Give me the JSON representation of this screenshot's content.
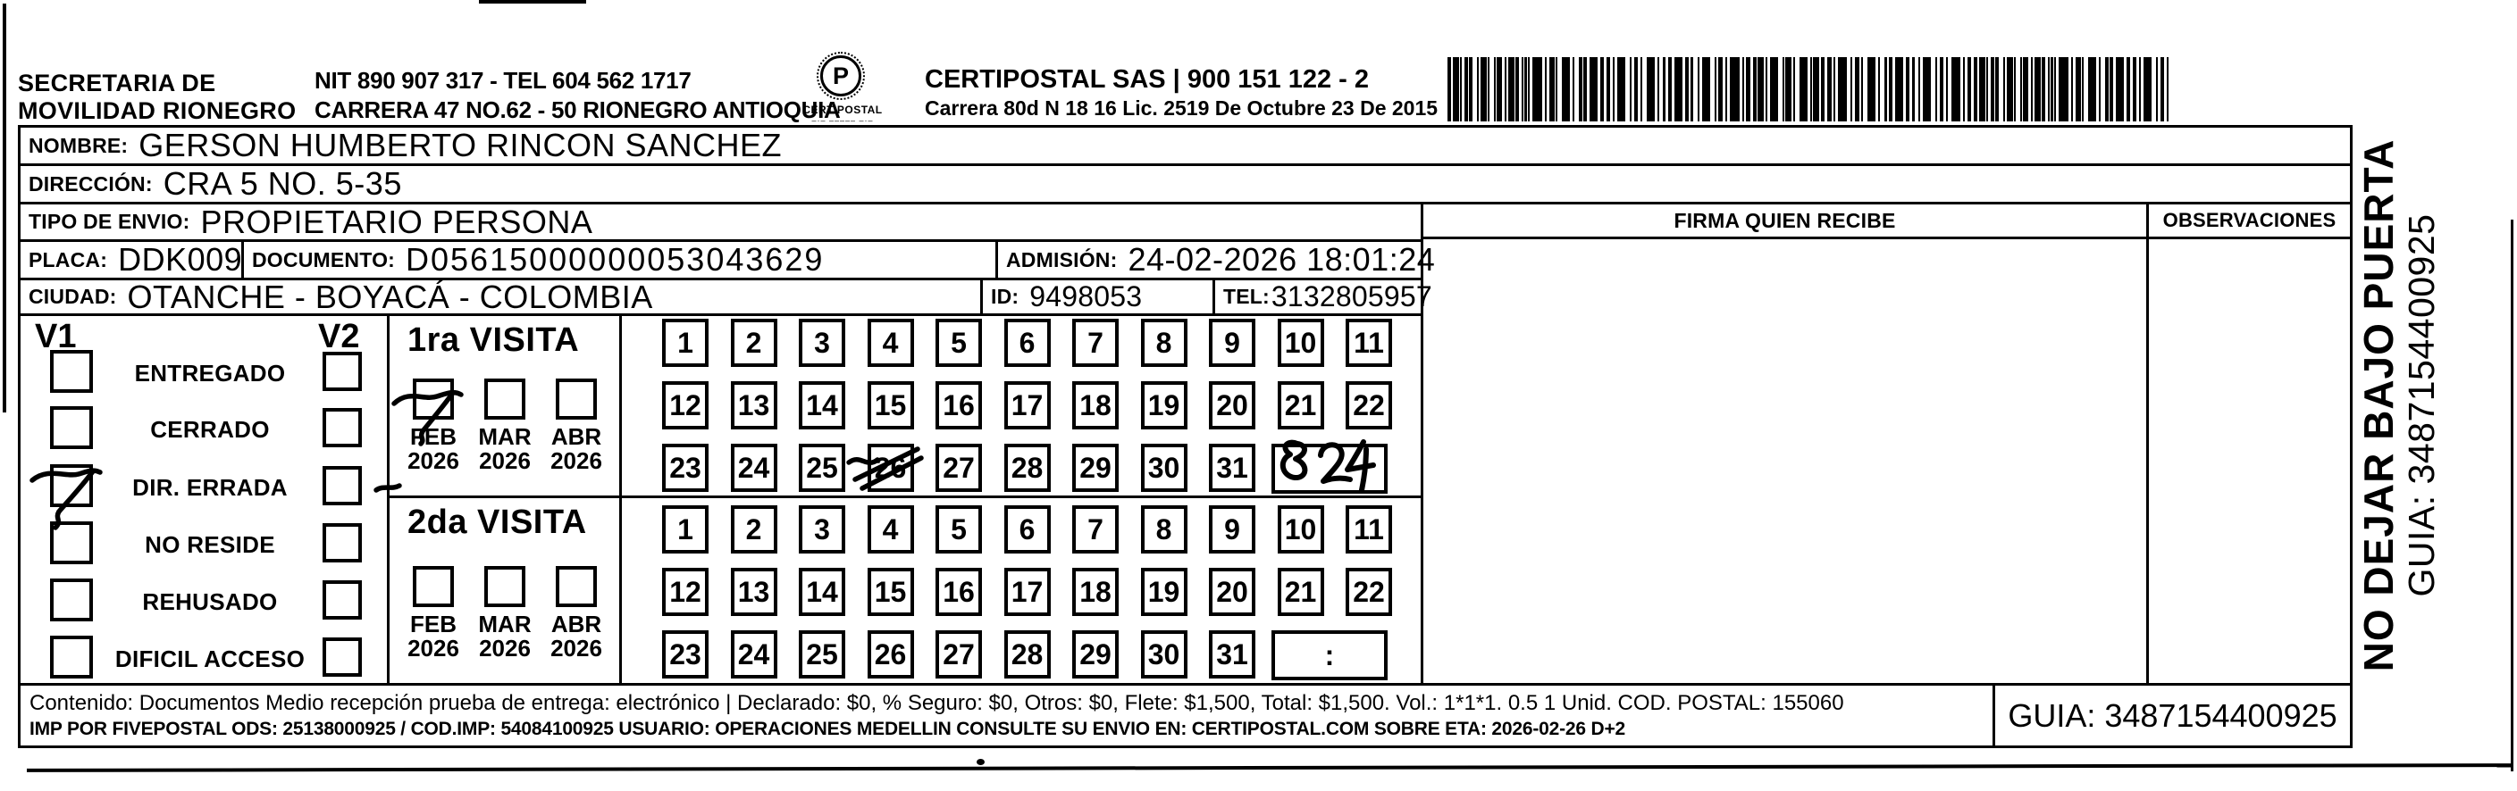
{
  "header": {
    "org_line1": "SECRETARIA DE",
    "org_line2": "MOVILIDAD RIONEGRO",
    "nit_line": "NIT 890 907 317 - TEL 604 562 1717",
    "address_line": "CARRERA 47 NO.62 - 50 RIONEGRO ANTIOQUIA",
    "logo_glyph": "P",
    "logo_caption": "CERTIPOSTAL",
    "logo_subcaption": "–·– ––––– –·–",
    "company_line": "CERTIPOSTAL SAS | 900 151 122 - 2",
    "license_line": "Carrera 80d N 18 16  Lic. 2519 De Octubre 23 De 2015"
  },
  "recipient": {
    "nombre_label": "NOMBRE:",
    "nombre": "GERSON HUMBERTO RINCON SANCHEZ",
    "direccion_label": "DIRECCIÓN:",
    "direccion": "CRA 5 NO. 5-35",
    "tipo_envio_label": "TIPO DE ENVIO:",
    "tipo_envio": "PROPIETARIO PERSONA",
    "placa_label": "PLACA:",
    "placa": "DDK009",
    "documento_label": "DOCUMENTO:",
    "documento": "D05615000000053043629",
    "admision_label": "ADMISIÓN:",
    "admision": "24-02-2026 18:01:24",
    "ciudad_label": "CIUDAD:",
    "ciudad": "OTANCHE - BOYACÁ - COLOMBIA",
    "id_label": "ID:",
    "id": "9498053",
    "tel_label": "TEL:",
    "tel": "3132805957"
  },
  "signature_section": {
    "firma_header": "FIRMA QUIEN RECIBE",
    "observaciones_header": "OBSERVACIONES"
  },
  "visits": {
    "v1_label": "V1",
    "v2_label": "V2",
    "status_options": [
      "ENTREGADO",
      "CERRADO",
      "DIR. ERRADA",
      "NO RESIDE",
      "REHUSADO",
      "DIFICIL ACCESO"
    ],
    "v1_checked_option": "DIR. ERRADA",
    "first_visit": {
      "title": "1ra VISITA",
      "months": [
        "FEB",
        "MAR",
        "ABR"
      ],
      "years": [
        "2026",
        "2026",
        "2026"
      ],
      "checked_month": "FEB 2026",
      "day_rows": [
        [
          "1",
          "2",
          "3",
          "4",
          "5",
          "6",
          "7",
          "8",
          "9",
          "10",
          "11"
        ],
        [
          "12",
          "13",
          "14",
          "15",
          "16",
          "17",
          "18",
          "19",
          "20",
          "21",
          "22"
        ],
        [
          "23",
          "24",
          "25",
          "26",
          "27",
          "28",
          "29",
          "30",
          "31"
        ]
      ],
      "crossed_out_day": "26",
      "handwritten_time": "8 24"
    },
    "second_visit": {
      "title": "2da VISITA",
      "months": [
        "FEB",
        "MAR",
        "ABR"
      ],
      "years": [
        "2026",
        "2026",
        "2026"
      ],
      "day_rows": [
        [
          "1",
          "2",
          "3",
          "4",
          "5",
          "6",
          "7",
          "8",
          "9",
          "10",
          "11"
        ],
        [
          "12",
          "13",
          "14",
          "15",
          "16",
          "17",
          "18",
          "19",
          "20",
          "21",
          "22"
        ],
        [
          "23",
          "24",
          "25",
          "26",
          "27",
          "28",
          "29",
          "30",
          "31"
        ]
      ],
      "time_box_text": ":"
    }
  },
  "side_strip": {
    "line1": "NO DEJAR BAJO PUERTA",
    "line2": "GUIA: 3487154400925"
  },
  "footer": {
    "contenido_line": "Contenido: Documentos Medio recepción prueba de entrega: electrónico | Declarado: $0, % Seguro: $0, Otros: $0, Flete: $1,500, Total: $1,500. Vol.: 1*1*1. 0.5  1 Unid. COD. POSTAL: 155060",
    "imp_line": "IMP POR FIVEPOSTAL ODS: 25138000925 / COD.IMP: 54084100925 USUARIO: OPERACIONES MEDELLIN CONSULTE SU ENVIO EN: CERTIPOSTAL.COM SOBRE ETA: 2026-02-26 D+2",
    "guia_label": "GUIA: 3487154400925"
  }
}
